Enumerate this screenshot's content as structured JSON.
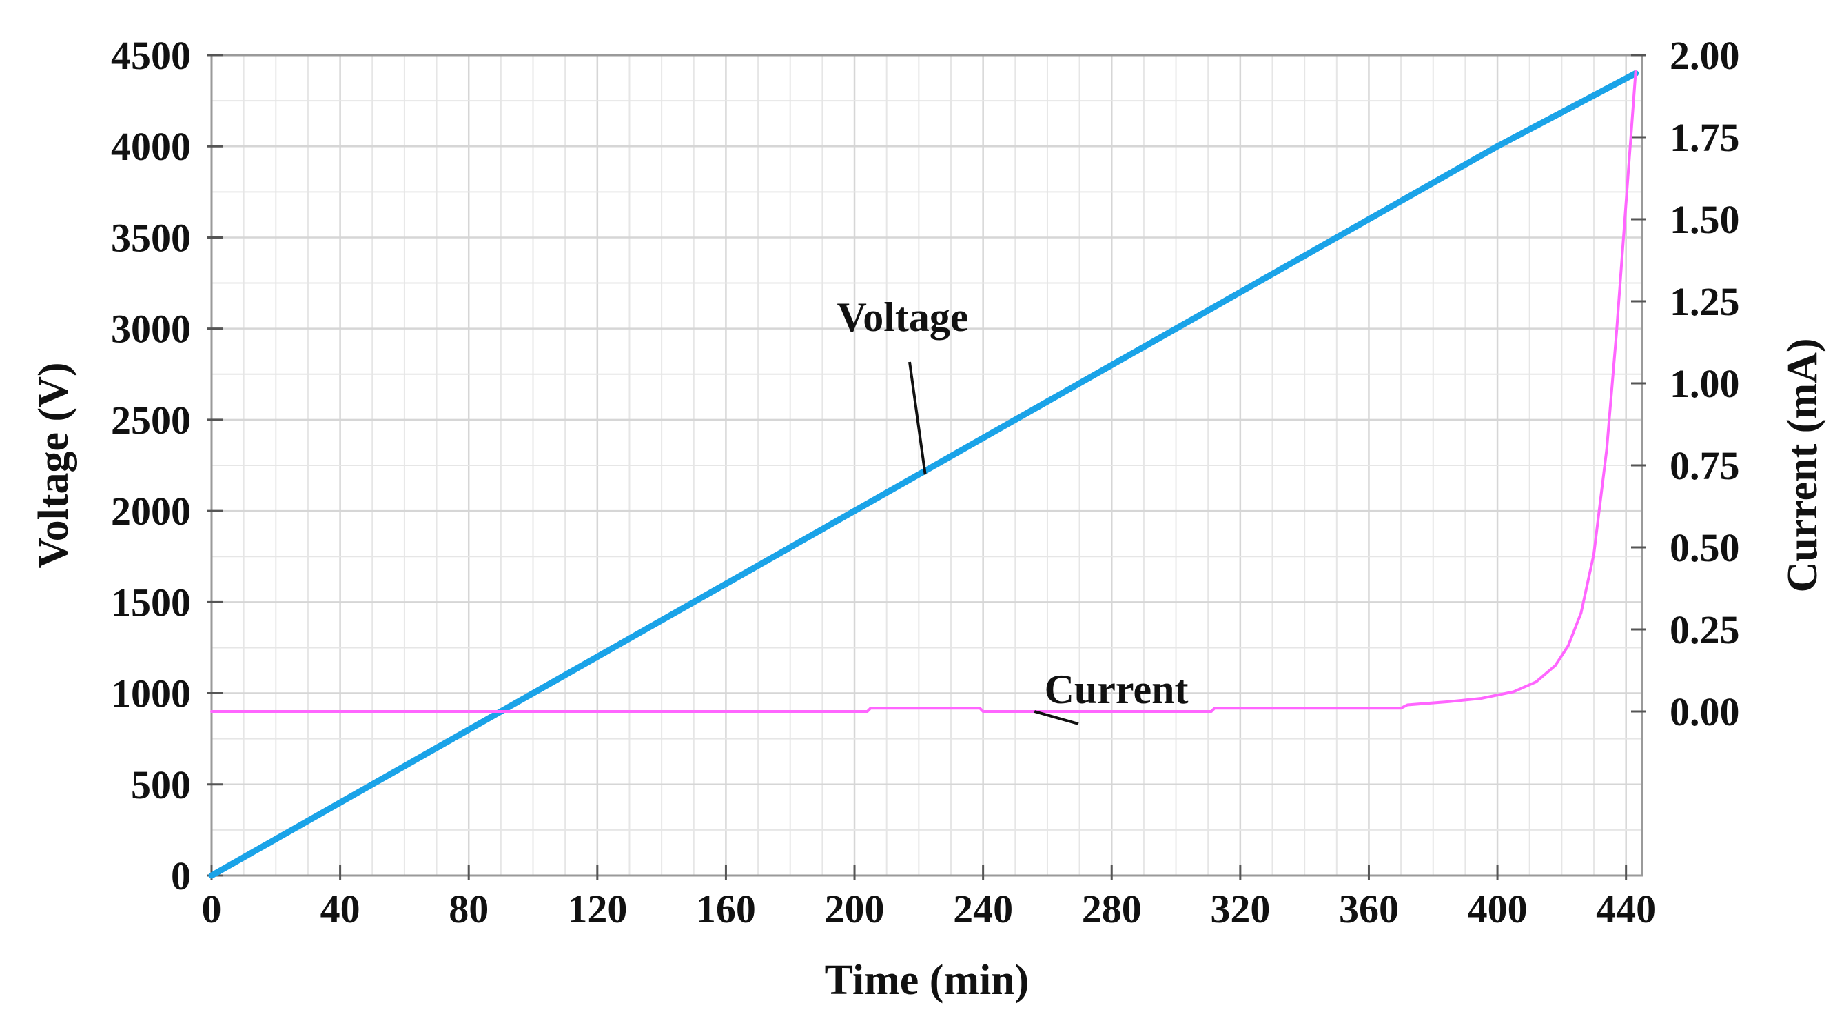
{
  "chart_data": {
    "type": "line",
    "title": "",
    "xlabel": "Time (min)",
    "ylabel": "Voltage (V)",
    "y2label": "Current (mA)",
    "xlim": [
      0,
      445
    ],
    "ylim": [
      0,
      4500
    ],
    "y2lim": [
      -0.5,
      2.0
    ],
    "x_ticks": [
      "0",
      "40",
      "80",
      "120",
      "160",
      "200",
      "240",
      "280",
      "320",
      "360",
      "400",
      "440"
    ],
    "y_ticks": [
      "0",
      "500",
      "1000",
      "1500",
      "2000",
      "2500",
      "3000",
      "3500",
      "4000",
      "4500"
    ],
    "y2_ticks": [
      "0.00",
      "0.25",
      "0.50",
      "0.75",
      "1.00",
      "1.25",
      "1.50",
      "1.75",
      "2.00"
    ],
    "grid": true,
    "series": [
      {
        "name": "Voltage",
        "axis": "left",
        "color": "#1aa3e8",
        "x": [
          0,
          40,
          80,
          120,
          160,
          200,
          240,
          280,
          320,
          360,
          400,
          443
        ],
        "y": [
          0,
          400,
          800,
          1200,
          1600,
          2000,
          2400,
          2800,
          3200,
          3600,
          4000,
          4400
        ]
      },
      {
        "name": "Current",
        "axis": "right",
        "color": "#ff66ff",
        "x": [
          0,
          100,
          204,
          205,
          239,
          240,
          311,
          312,
          370,
          372,
          385,
          395,
          405,
          412,
          418,
          422,
          426,
          430,
          434,
          437,
          440,
          443
        ],
        "y": [
          0.0,
          0.0,
          0.0,
          0.01,
          0.01,
          0.0,
          0.0,
          0.01,
          0.01,
          0.02,
          0.03,
          0.04,
          0.06,
          0.09,
          0.14,
          0.2,
          0.3,
          0.48,
          0.8,
          1.15,
          1.55,
          1.95
        ]
      }
    ],
    "annotations": [
      {
        "text": "Voltage",
        "target_series": "Voltage",
        "target_x": 222,
        "target_y": 2200
      },
      {
        "text": "Current",
        "target_series": "Current",
        "target_x": 256,
        "target_y": 0.0
      }
    ]
  }
}
